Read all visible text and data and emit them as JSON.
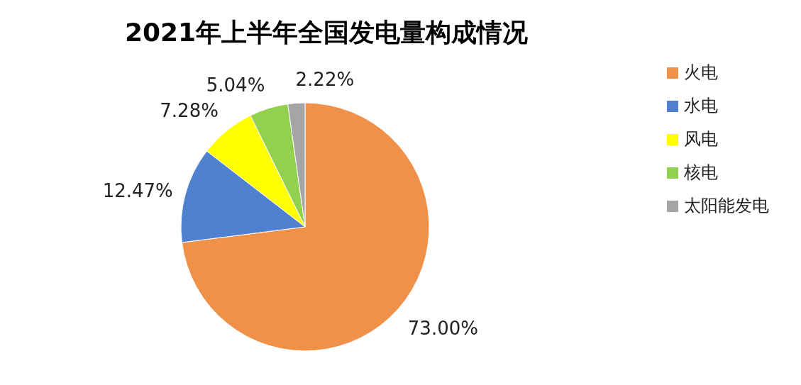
{
  "chart_data": {
    "type": "pie",
    "title": "2021年上半年全国发电量构成情况",
    "categories": [
      "火电",
      "水电",
      "风电",
      "核电",
      "太阳能发电"
    ],
    "values": [
      73.0,
      12.47,
      7.28,
      5.04,
      2.22
    ],
    "colors": [
      "#f0914a",
      "#4f81d0",
      "#ffff00",
      "#92d050",
      "#a5a5a5"
    ],
    "value_labels": [
      "73.00%",
      "12.47%",
      "7.28%",
      "5.04%",
      "2.22%"
    ],
    "legend": "right"
  }
}
